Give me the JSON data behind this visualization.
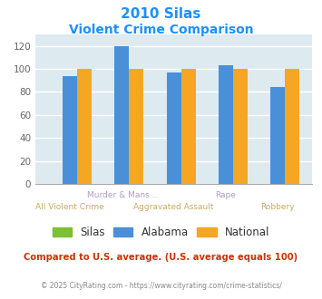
{
  "title_line1": "2010 Silas",
  "title_line2": "Violent Crime Comparison",
  "x_labels_row1": [
    "",
    "Murder & Mans...",
    "",
    "Rape",
    ""
  ],
  "x_labels_row2": [
    "All Violent Crime",
    "",
    "Aggravated Assault",
    "",
    "Robbery"
  ],
  "silas_values": [
    0,
    0,
    0,
    0,
    0
  ],
  "alabama_values": [
    94,
    120,
    97,
    103,
    84
  ],
  "national_values": [
    100,
    100,
    100,
    100,
    100
  ],
  "bar_color_silas": "#7cc036",
  "bar_color_alabama": "#4a90d9",
  "bar_color_national": "#f5a623",
  "background_color": "#ddeaf0",
  "ylim": [
    0,
    130
  ],
  "yticks": [
    0,
    20,
    40,
    60,
    80,
    100,
    120
  ],
  "title_color": "#1e90ff",
  "xlabelcolor_top": "#b09cc0",
  "xlabelcolor_bot": "#c8a860",
  "annotation_text": "Compared to U.S. average. (U.S. average equals 100)",
  "footer_text": "© 2025 CityRating.com - https://www.cityrating.com/crime-statistics/",
  "legend_labels": [
    "Silas",
    "Alabama",
    "National"
  ],
  "bar_width": 0.28
}
